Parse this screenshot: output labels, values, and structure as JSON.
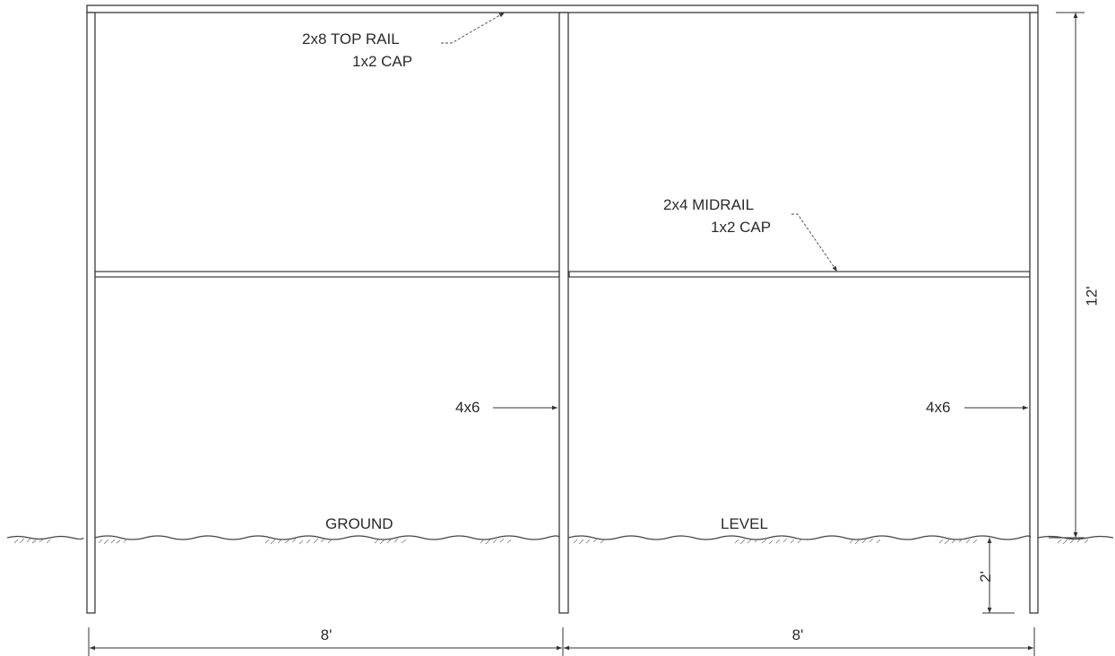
{
  "drawing": {
    "callouts": {
      "top_rail_line1": "2x8 TOP RAIL",
      "top_rail_line2": "1x2 CAP",
      "midrail_line1": "2x4 MIDRAIL",
      "midrail_line2": "1x2 CAP",
      "post_left": "4x6",
      "post_right": "4x6"
    },
    "ground_labels": {
      "left": "GROUND",
      "right": "LEVEL"
    },
    "dimensions": {
      "height": "12'",
      "embed_depth": "2'",
      "span_left": "8'",
      "span_right": "8'"
    },
    "line_color": "#3a3a3a"
  }
}
